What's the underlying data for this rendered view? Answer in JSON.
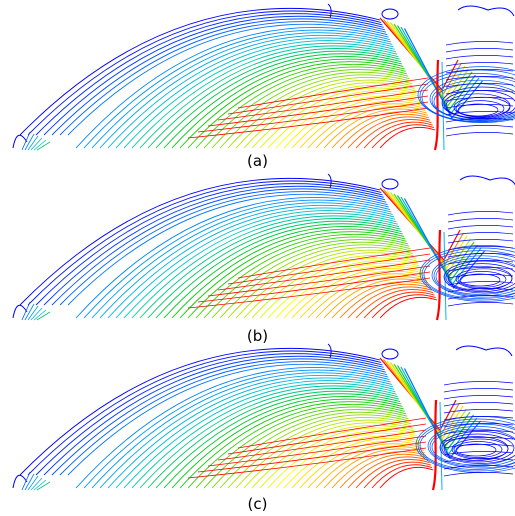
{
  "panels": [
    {
      "label": "(a)",
      "variant": "a"
    },
    {
      "label": "(b)",
      "variant": "b"
    },
    {
      "label": "(c)",
      "variant": "c"
    }
  ],
  "colors": {
    "background": "#ffffff",
    "colormap": [
      "#0000ff",
      "#0080ff",
      "#00c8c8",
      "#00c800",
      "#a0e000",
      "#ffff00",
      "#ffa000",
      "#ff0000"
    ]
  }
}
